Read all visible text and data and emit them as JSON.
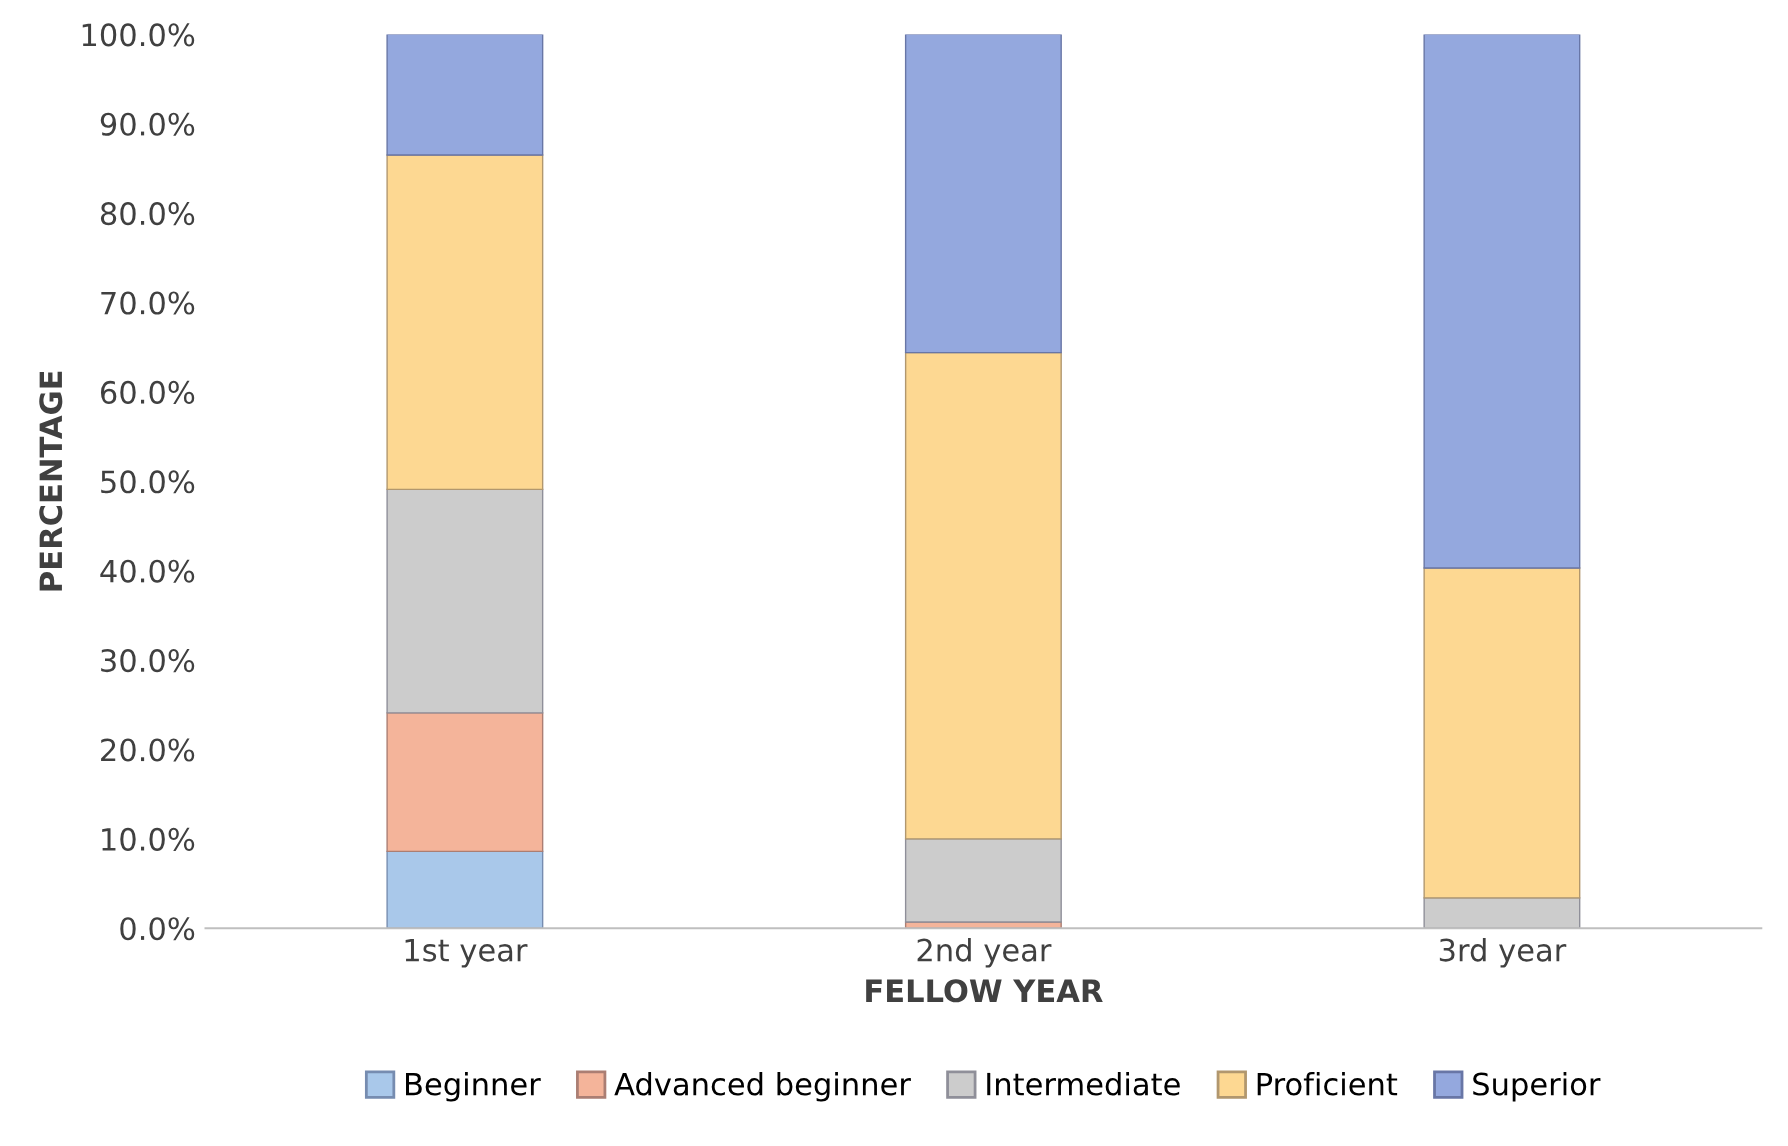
{
  "chart_data": {
    "type": "bar",
    "stacked": true,
    "xlabel": "FELLOW YEAR",
    "ylabel": "PERCENTAGE",
    "categories": [
      "1st year",
      "2nd year",
      "3rd year"
    ],
    "series": [
      {
        "name": "Beginner",
        "color": "#a9c8ea",
        "values": [
          8.6,
          0,
          0
        ]
      },
      {
        "name": "Advanced beginner",
        "color": "#f4b49a",
        "values": [
          15.5,
          0.7,
          0
        ]
      },
      {
        "name": "Intermediate",
        "color": "#cccccc",
        "values": [
          25.0,
          9.3,
          3.4
        ]
      },
      {
        "name": "Proficient",
        "color": "#fdd892",
        "values": [
          37.4,
          54.4,
          36.9
        ]
      },
      {
        "name": "Superior",
        "color": "#94a8de",
        "values": [
          13.5,
          35.6,
          59.7
        ]
      }
    ],
    "ylim": [
      0,
      100
    ],
    "yticks": [
      {
        "value": 0,
        "label": "0.0%"
      },
      {
        "value": 10,
        "label": "10.0%"
      },
      {
        "value": 20,
        "label": "20.0%"
      },
      {
        "value": 30,
        "label": "30.0%"
      },
      {
        "value": 40,
        "label": "40.0%"
      },
      {
        "value": 50,
        "label": "50.0%"
      },
      {
        "value": 60,
        "label": "60.0%"
      },
      {
        "value": 70,
        "label": "70.0%"
      },
      {
        "value": 80,
        "label": "80.0%"
      },
      {
        "value": 90,
        "label": "90.0%"
      },
      {
        "value": 100,
        "label": "100.0%"
      }
    ],
    "grid": false,
    "legend": "bottom"
  }
}
